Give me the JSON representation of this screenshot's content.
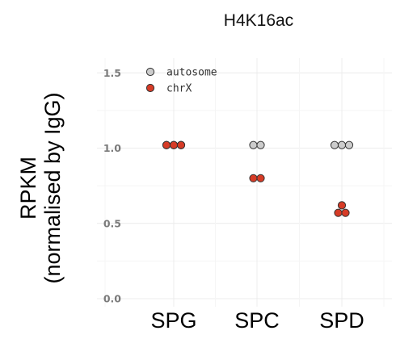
{
  "chart_data": {
    "type": "scatter",
    "title": "H4K16ac",
    "ylabel_line1": "RPKM",
    "ylabel_line2": "(normalised by IgG)",
    "xlabel": "",
    "categories": [
      "SPG",
      "SPC",
      "SPD"
    ],
    "ylim": [
      0,
      1.6
    ],
    "yticks": [
      0.0,
      0.5,
      1.0,
      1.5
    ],
    "ytick_labels": [
      "0.0",
      "0.5",
      "1.0",
      "1.5"
    ],
    "grid": true,
    "legend_position": "top-left",
    "series": [
      {
        "name": "autosome",
        "color": "#cccccc",
        "points": [
          {
            "category": "SPG",
            "values": [
              1.02,
              1.02,
              1.02
            ]
          },
          {
            "category": "SPC",
            "values": [
              1.02,
              1.02
            ]
          },
          {
            "category": "SPD",
            "values": [
              1.02,
              1.02,
              1.02
            ]
          }
        ]
      },
      {
        "name": "chrX",
        "color": "#d63b26",
        "points": [
          {
            "category": "SPG",
            "values": [
              1.02,
              1.02,
              1.02
            ]
          },
          {
            "category": "SPC",
            "values": [
              0.8,
              0.8
            ]
          },
          {
            "category": "SPD",
            "values": [
              0.62,
              0.57,
              0.57
            ]
          }
        ]
      }
    ]
  }
}
